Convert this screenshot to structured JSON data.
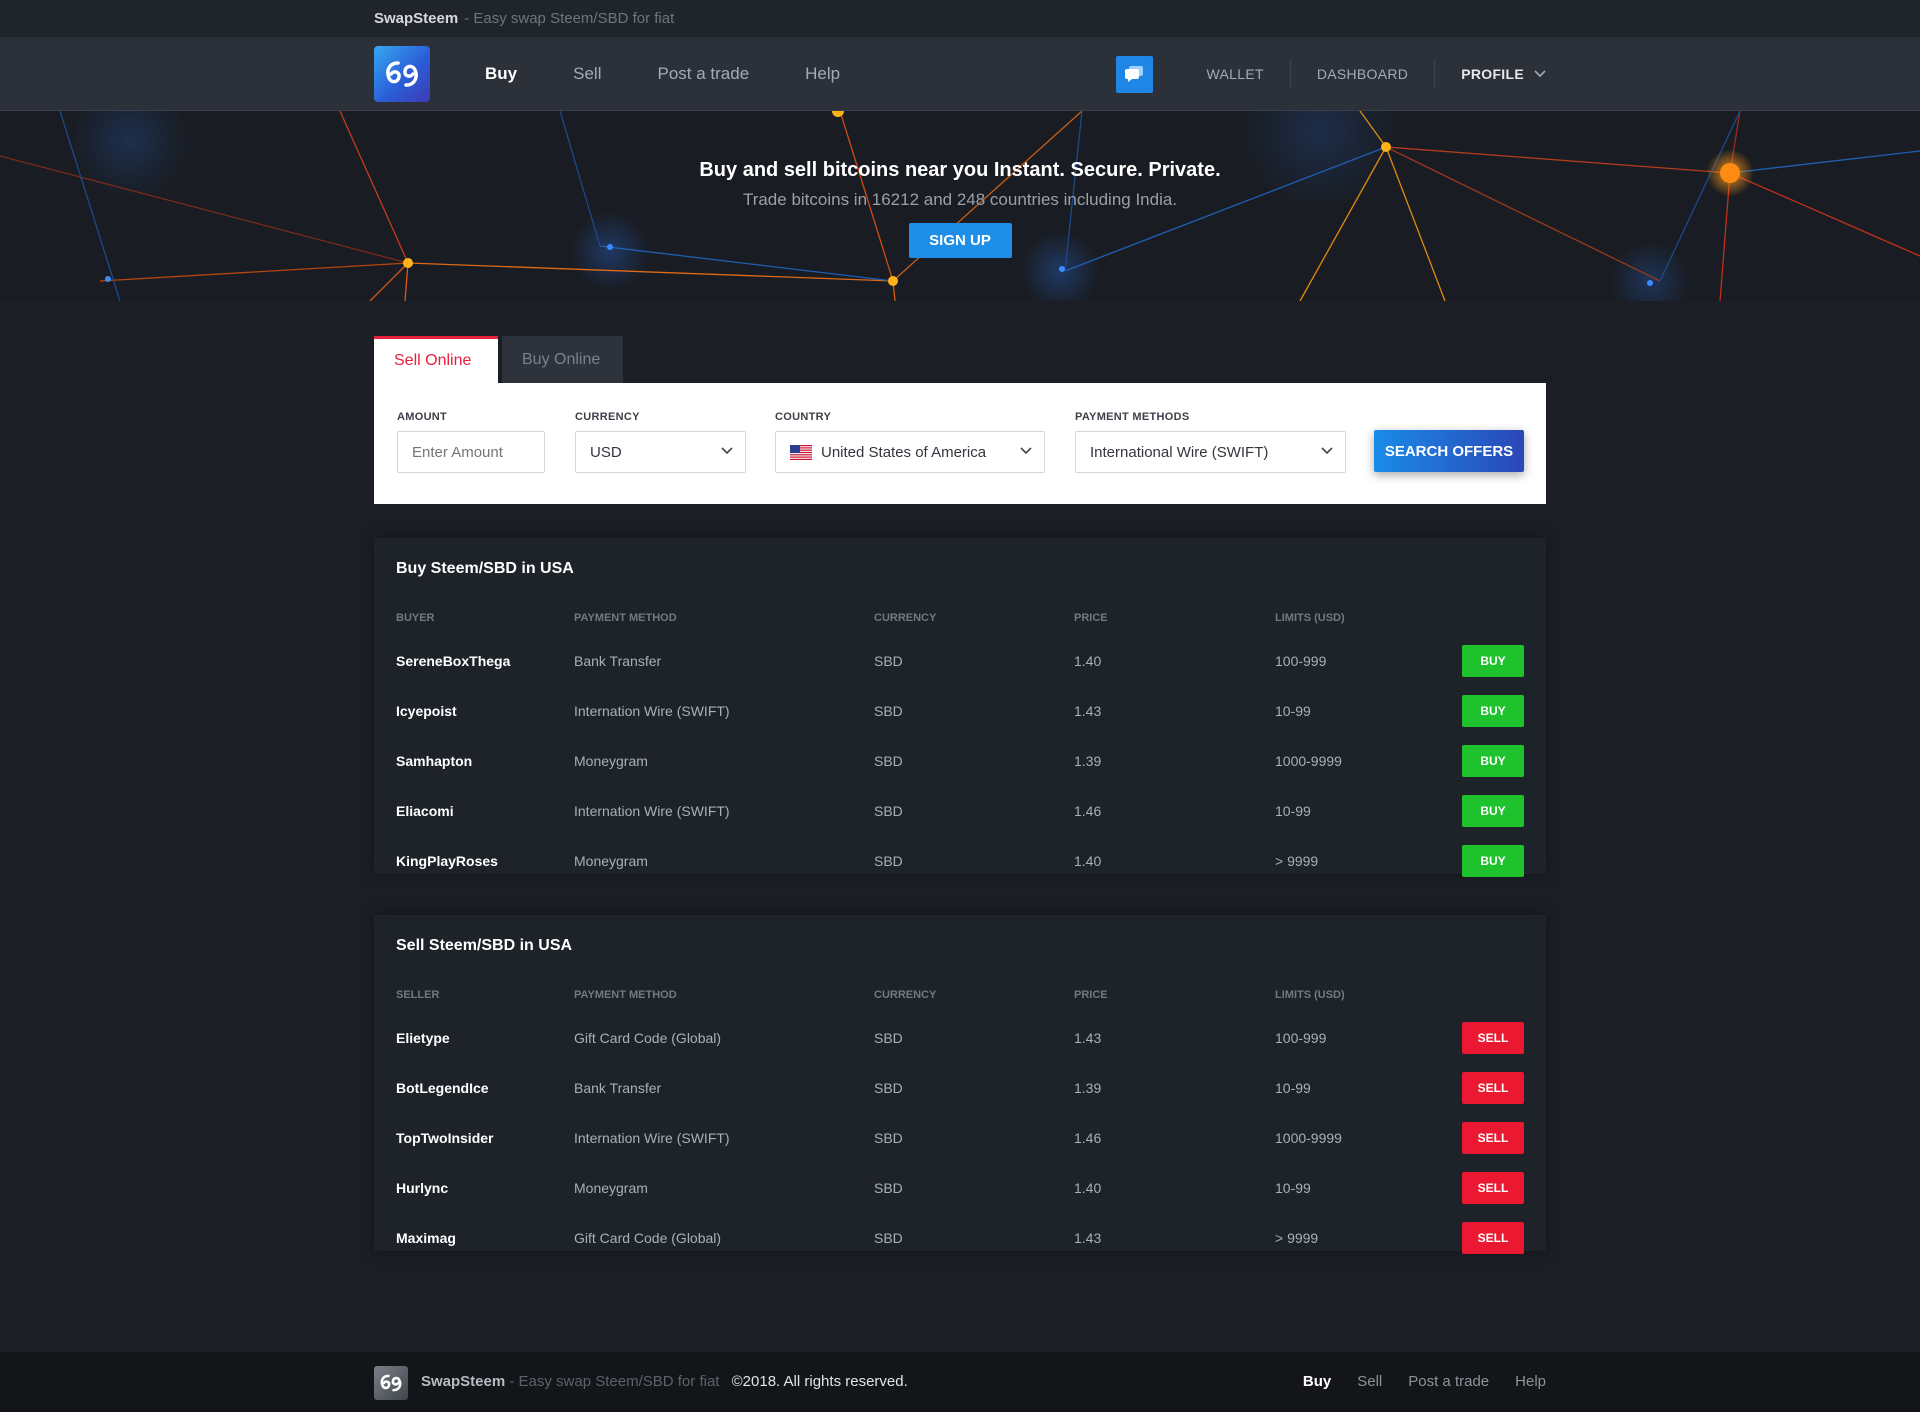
{
  "topbar": {
    "brand": "SwapSteem",
    "tagline": "- Easy swap Steem/SBD for fiat"
  },
  "nav": {
    "links": [
      {
        "label": "Buy",
        "active": true
      },
      {
        "label": "Sell",
        "active": false
      },
      {
        "label": "Post a trade",
        "active": false
      },
      {
        "label": "Help",
        "active": false
      }
    ],
    "wallet": "WALLET",
    "dashboard": "DASHBOARD",
    "profile": "PROFILE"
  },
  "hero": {
    "title": "Buy and sell bitcoins near you Instant. Secure. Private.",
    "subtitle": "Trade bitcoins in 16212 and 248 countries including India.",
    "signup": "SIGN UP"
  },
  "search": {
    "tabs": {
      "sell": "Sell Online",
      "buy": "Buy Online"
    },
    "amount_label": "AMOUNT",
    "amount_placeholder": "Enter Amount",
    "currency_label": "CURRENCY",
    "currency_value": "USD",
    "country_label": "COUNTRY",
    "country_value": "United States of America",
    "payment_label": "PAYMENT METHODS",
    "payment_value": "International Wire (SWIFT)",
    "button": "SEARCH OFFERS"
  },
  "buy_table": {
    "title": "Buy Steem/SBD in USA",
    "headers": {
      "party": "BUYER",
      "method": "PAYMENT METHOD",
      "currency": "CURRENCY",
      "price": "PRICE",
      "limits": "LIMITS (USD)"
    },
    "button": "BUY",
    "rows": [
      {
        "name": "SereneBoxThega",
        "method": "Bank Transfer",
        "currency": "SBD",
        "price": "1.40",
        "limits": "100-999"
      },
      {
        "name": "Icyepoist",
        "method": "Internation Wire (SWIFT)",
        "currency": "SBD",
        "price": "1.43",
        "limits": "10-99"
      },
      {
        "name": "Samhapton",
        "method": "Moneygram",
        "currency": "SBD",
        "price": "1.39",
        "limits": "1000-9999"
      },
      {
        "name": "Eliacomi",
        "method": "Internation Wire (SWIFT)",
        "currency": "SBD",
        "price": "1.46",
        "limits": "10-99"
      },
      {
        "name": "KingPlayRoses",
        "method": "Moneygram",
        "currency": "SBD",
        "price": "1.40",
        "limits": "> 9999"
      }
    ]
  },
  "sell_table": {
    "title": "Sell Steem/SBD in USA",
    "headers": {
      "party": "SELLER",
      "method": "PAYMENT METHOD",
      "currency": "CURRENCY",
      "price": "PRICE",
      "limits": "LIMITS (USD)"
    },
    "button": "SELL",
    "rows": [
      {
        "name": "Elietype",
        "method": "Gift Card Code (Global)",
        "currency": "SBD",
        "price": "1.43",
        "limits": "100-999"
      },
      {
        "name": "BotLegendIce",
        "method": "Bank Transfer",
        "currency": "SBD",
        "price": "1.39",
        "limits": "10-99"
      },
      {
        "name": "TopTwoInsider",
        "method": "Internation Wire (SWIFT)",
        "currency": "SBD",
        "price": "1.46",
        "limits": "1000-9999"
      },
      {
        "name": "Hurlync",
        "method": "Moneygram",
        "currency": "SBD",
        "price": "1.40",
        "limits": "10-99"
      },
      {
        "name": "Maximag",
        "method": "Gift Card Code (Global)",
        "currency": "SBD",
        "price": "1.43",
        "limits": "> 9999"
      }
    ]
  },
  "footer": {
    "brand": "SwapSteem",
    "tagline": "- Easy swap Steem/SBD for fiat",
    "copyright": "©2018. All rights reserved.",
    "links": [
      "Buy",
      "Sell",
      "Post a trade",
      "Help"
    ]
  },
  "colors": {
    "accent_blue": "#1f8ee8",
    "buy_green": "#1ec22d",
    "sell_red": "#ea1830",
    "tab_red": "#e8203c"
  }
}
